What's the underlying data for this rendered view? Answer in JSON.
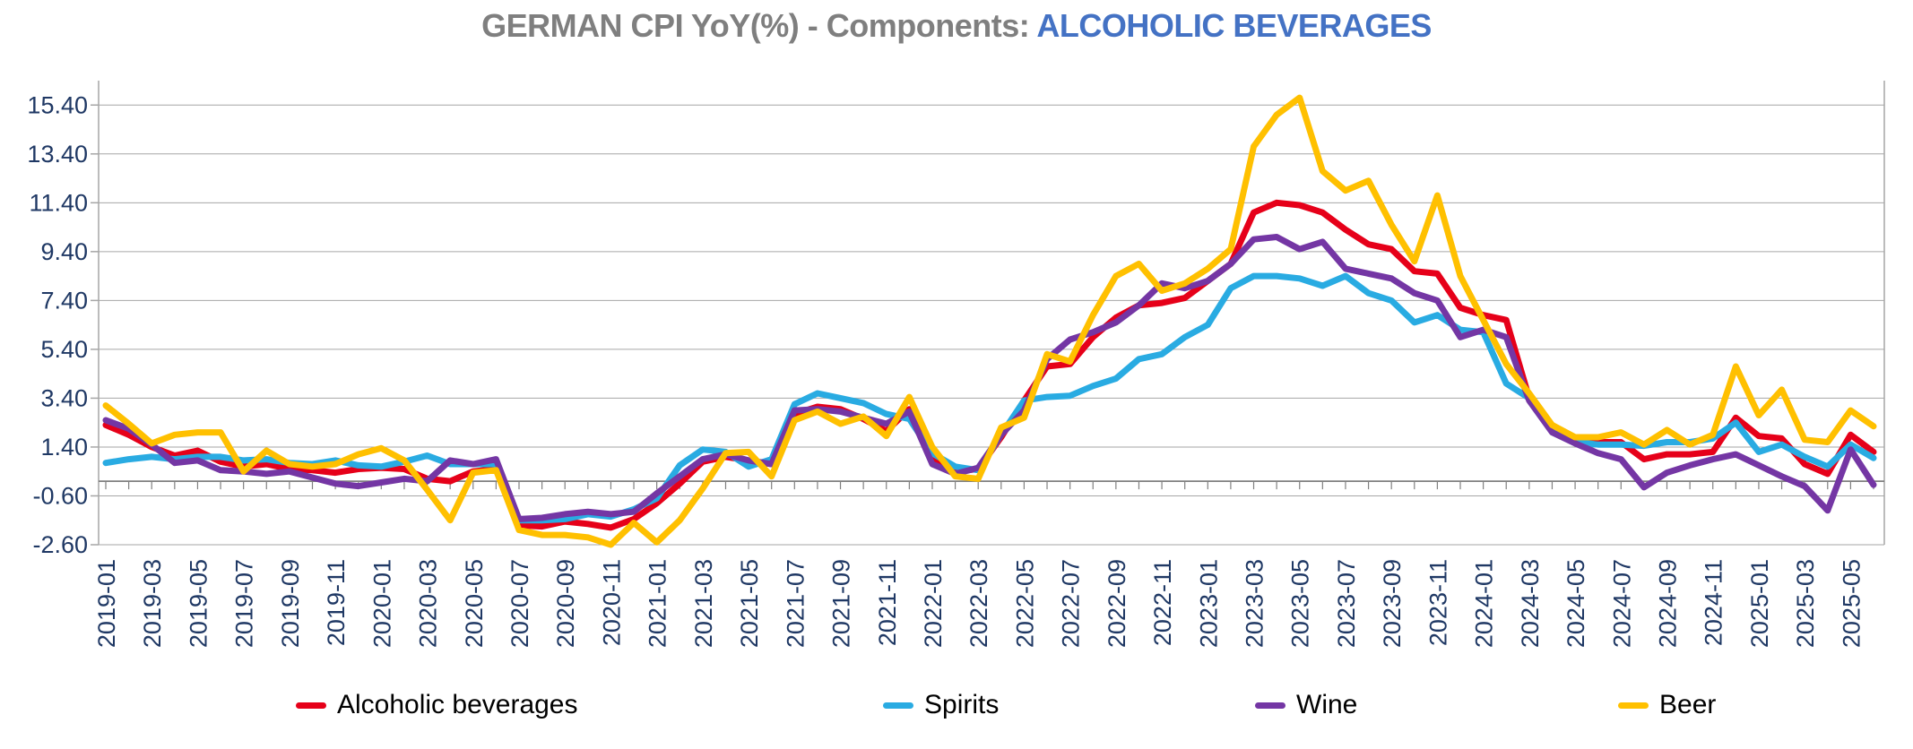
{
  "title": {
    "left": "GERMAN CPI YoY(%) - Components: ",
    "right": "ALCOHOLIC BEVERAGES",
    "left_color": "#7f7f7f",
    "right_color": "#4472c4"
  },
  "colors": {
    "axis_label": "#1f3864",
    "gridline": "#a6a6a6",
    "zero_axis": "#808080",
    "background": "#ffffff",
    "series_alcoholic_beverages": "#e60019",
    "series_spirits": "#29abe2",
    "series_wine": "#7436a4",
    "series_beer": "#ffc000"
  },
  "axis": {
    "y_tick_labels": [
      "15.40",
      "13.40",
      "11.40",
      "9.40",
      "7.40",
      "5.40",
      "3.40",
      "1.40",
      "-0.60",
      "-2.60"
    ],
    "y_tick_values": [
      15.4,
      13.4,
      11.4,
      9.4,
      7.4,
      5.4,
      3.4,
      1.4,
      -0.6,
      -2.6
    ],
    "x_label_every_n_months": 2
  },
  "legend": [
    {
      "label": "Alcoholic beverages",
      "color": "#e60019"
    },
    {
      "label": "Spirits",
      "color": "#29abe2"
    },
    {
      "label": "Wine",
      "color": "#7436a4"
    },
    {
      "label": "Beer",
      "color": "#ffc000"
    }
  ],
  "chart_data": {
    "type": "line",
    "title": "GERMAN CPI YoY(%) - Components: ALCOHOLIC BEVERAGES",
    "xlabel": "",
    "ylabel": "",
    "ylim": [
      -2.6,
      16.4
    ],
    "grid": true,
    "legend_position": "bottom",
    "x": [
      "2019-01",
      "2019-02",
      "2019-03",
      "2019-04",
      "2019-05",
      "2019-06",
      "2019-07",
      "2019-08",
      "2019-09",
      "2019-10",
      "2019-11",
      "2019-12",
      "2020-01",
      "2020-02",
      "2020-03",
      "2020-04",
      "2020-05",
      "2020-06",
      "2020-07",
      "2020-08",
      "2020-09",
      "2020-10",
      "2020-11",
      "2020-12",
      "2021-01",
      "2021-02",
      "2021-03",
      "2021-04",
      "2021-05",
      "2021-06",
      "2021-07",
      "2021-08",
      "2021-09",
      "2021-10",
      "2021-11",
      "2021-12",
      "2022-01",
      "2022-02",
      "2022-03",
      "2022-04",
      "2022-05",
      "2022-06",
      "2022-07",
      "2022-08",
      "2022-09",
      "2022-10",
      "2022-11",
      "2022-12",
      "2023-01",
      "2023-02",
      "2023-03",
      "2023-04",
      "2023-05",
      "2023-06",
      "2023-07",
      "2023-08",
      "2023-09",
      "2023-10",
      "2023-11",
      "2023-12",
      "2024-01",
      "2024-02",
      "2024-03",
      "2024-04",
      "2024-05",
      "2024-06",
      "2024-07",
      "2024-08",
      "2024-09",
      "2024-10",
      "2024-11",
      "2024-12",
      "2025-01",
      "2025-02",
      "2025-03",
      "2025-04",
      "2025-05",
      "2025-06"
    ],
    "series": [
      {
        "name": "Alcoholic beverages",
        "color": "#e60019",
        "values": [
          2.3,
          1.9,
          1.4,
          1.05,
          1.25,
          0.8,
          0.6,
          0.7,
          0.5,
          0.45,
          0.35,
          0.5,
          0.55,
          0.5,
          0.1,
          0.0,
          0.4,
          0.5,
          -1.8,
          -1.85,
          -1.65,
          -1.75,
          -1.9,
          -1.55,
          -0.9,
          -0.1,
          0.8,
          1.0,
          0.85,
          0.7,
          2.75,
          3.05,
          2.95,
          2.55,
          2.05,
          2.95,
          0.9,
          0.4,
          0.5,
          1.8,
          3.3,
          4.7,
          4.8,
          5.9,
          6.7,
          7.2,
          7.3,
          7.5,
          8.2,
          8.9,
          11.0,
          11.4,
          11.3,
          11.0,
          10.3,
          9.7,
          9.5,
          8.6,
          8.5,
          7.1,
          6.8,
          6.6,
          3.4,
          2.1,
          1.6,
          1.6,
          1.6,
          0.9,
          1.1,
          1.1,
          1.2,
          2.6,
          1.85,
          1.75,
          0.7,
          0.3,
          1.9,
          1.2
        ]
      },
      {
        "name": "Spirits",
        "color": "#29abe2",
        "values": [
          0.75,
          0.9,
          1.0,
          0.9,
          1.0,
          1.0,
          0.85,
          0.9,
          0.75,
          0.7,
          0.85,
          0.65,
          0.6,
          0.8,
          1.05,
          0.7,
          0.7,
          0.7,
          -1.6,
          -1.6,
          -1.55,
          -1.35,
          -1.45,
          -1.15,
          -0.7,
          0.65,
          1.3,
          1.2,
          0.6,
          0.9,
          3.15,
          3.6,
          3.4,
          3.2,
          2.75,
          2.55,
          1.15,
          0.6,
          0.45,
          1.9,
          3.3,
          3.45,
          3.5,
          3.9,
          4.2,
          5.0,
          5.2,
          5.9,
          6.4,
          7.9,
          8.4,
          8.4,
          8.3,
          8.0,
          8.4,
          7.7,
          7.4,
          6.5,
          6.8,
          6.2,
          6.1,
          4.0,
          3.4,
          2.1,
          1.6,
          1.5,
          1.5,
          1.45,
          1.6,
          1.6,
          1.75,
          2.4,
          1.2,
          1.5,
          1.0,
          0.6,
          1.5,
          0.95
        ]
      },
      {
        "name": "Wine",
        "color": "#7436a4",
        "values": [
          2.5,
          2.15,
          1.5,
          0.75,
          0.85,
          0.45,
          0.4,
          0.3,
          0.4,
          0.15,
          -0.1,
          -0.2,
          -0.05,
          0.1,
          0.0,
          0.85,
          0.7,
          0.9,
          -1.55,
          -1.5,
          -1.35,
          -1.25,
          -1.35,
          -1.25,
          -0.5,
          0.2,
          0.9,
          1.1,
          0.85,
          0.7,
          2.9,
          2.95,
          2.85,
          2.6,
          2.35,
          2.85,
          0.7,
          0.3,
          0.55,
          1.9,
          2.9,
          5.0,
          5.8,
          6.1,
          6.5,
          7.2,
          8.1,
          7.9,
          8.2,
          8.9,
          9.9,
          10.0,
          9.5,
          9.8,
          8.7,
          8.5,
          8.3,
          7.7,
          7.4,
          5.9,
          6.2,
          5.9,
          3.3,
          2.0,
          1.55,
          1.15,
          0.9,
          -0.25,
          0.35,
          0.65,
          0.9,
          1.1,
          0.65,
          0.2,
          -0.2,
          -1.2,
          1.3,
          -0.15
        ]
      },
      {
        "name": "Beer",
        "color": "#ffc000",
        "values": [
          3.1,
          2.35,
          1.55,
          1.9,
          2.0,
          2.0,
          0.4,
          1.25,
          0.7,
          0.6,
          0.7,
          1.1,
          1.35,
          0.85,
          -0.35,
          -1.6,
          0.35,
          0.45,
          -2.0,
          -2.2,
          -2.2,
          -2.3,
          -2.6,
          -1.7,
          -2.5,
          -1.6,
          -0.3,
          1.15,
          1.2,
          0.2,
          2.5,
          2.85,
          2.35,
          2.65,
          1.85,
          3.45,
          1.4,
          0.2,
          0.1,
          2.2,
          2.6,
          5.2,
          4.9,
          6.8,
          8.4,
          8.9,
          7.8,
          8.1,
          8.7,
          9.5,
          13.7,
          15.0,
          15.7,
          12.7,
          11.9,
          12.3,
          10.5,
          9.0,
          11.7,
          8.4,
          6.6,
          4.8,
          3.6,
          2.3,
          1.8,
          1.8,
          2.0,
          1.5,
          2.1,
          1.5,
          1.9,
          4.7,
          2.7,
          3.75,
          1.7,
          1.6,
          2.9,
          2.25
        ]
      }
    ]
  }
}
